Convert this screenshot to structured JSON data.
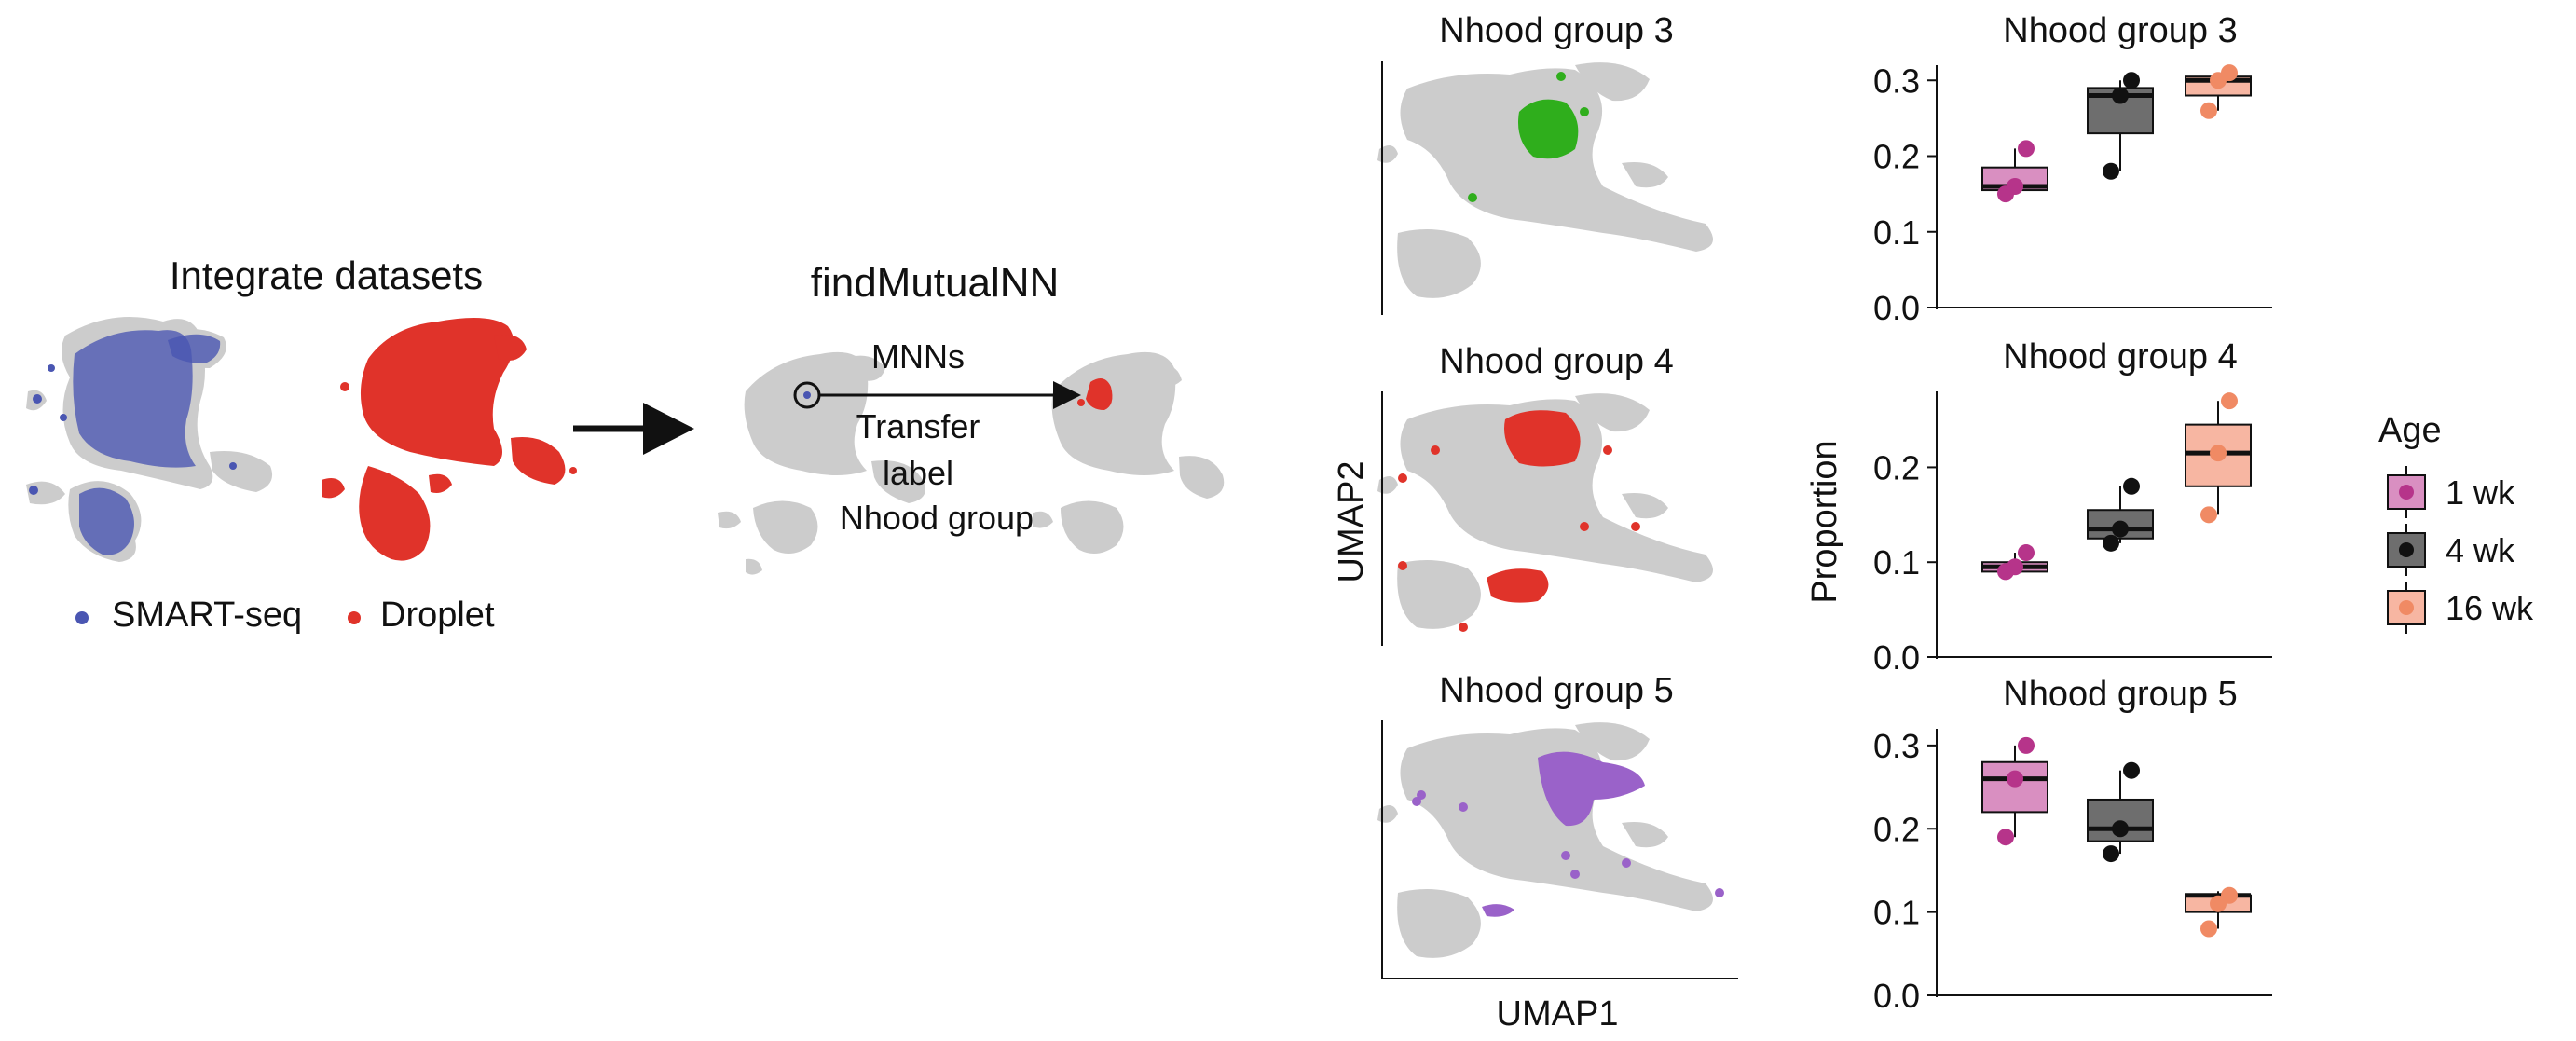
{
  "left_panel": {
    "title": "Integrate datasets",
    "legend": [
      {
        "label": "SMART-seq",
        "color": "#4a56b2"
      },
      {
        "label": "Droplet",
        "color": "#e0332a"
      }
    ]
  },
  "middle_panel": {
    "title": "findMutualNN",
    "mnn_label": "MNNs",
    "transfer_label_1": "Transfer",
    "transfer_label_2": "label",
    "transfer_label_3": "Nhood group"
  },
  "umap_panels": {
    "xlabel": "UMAP1",
    "ylabel": "UMAP2",
    "groups": [
      {
        "title": "Nhood group 3",
        "color": "#2fae1c"
      },
      {
        "title": "Nhood group 4",
        "color": "#e0332a"
      },
      {
        "title": "Nhood group 5",
        "color": "#9a62c9"
      }
    ]
  },
  "colors": {
    "umap_gray": "#cccccc",
    "age_1wk": "#d98fc1",
    "age_4wk": "#6e6e6e",
    "age_16wk": "#f7b6a2",
    "pt_1wk": "#b6348a",
    "pt_4wk": "#111111",
    "pt_16wk": "#f08a64"
  },
  "legend": {
    "title": "Age",
    "items": [
      {
        "label": "1 wk",
        "fill": "#d98fc1",
        "point": "#b6348a"
      },
      {
        "label": "4 wk",
        "fill": "#6e6e6e",
        "point": "#111111"
      },
      {
        "label": "16 wk",
        "fill": "#f7b6a2",
        "point": "#f08a64"
      }
    ]
  },
  "chart_data": [
    {
      "type": "box",
      "title": "Nhood group 3",
      "ylabel": "",
      "categories": [
        "1 wk",
        "4 wk",
        "16 wk"
      ],
      "yticks": [
        "0.0",
        "0.1",
        "0.2",
        "0.3"
      ],
      "ylim": [
        0,
        0.3
      ],
      "boxes": [
        {
          "q1": 0.155,
          "median": 0.16,
          "q3": 0.185,
          "whisker_low": 0.15,
          "whisker_high": 0.21,
          "points": [
            0.15,
            0.16,
            0.21
          ]
        },
        {
          "q1": 0.23,
          "median": 0.28,
          "q3": 0.29,
          "whisker_low": 0.18,
          "whisker_high": 0.3,
          "points": [
            0.18,
            0.28,
            0.3
          ]
        },
        {
          "q1": 0.28,
          "median": 0.3,
          "q3": 0.305,
          "whisker_low": 0.26,
          "whisker_high": 0.31,
          "points": [
            0.26,
            0.3,
            0.31
          ]
        }
      ]
    },
    {
      "type": "box",
      "title": "Nhood group 4",
      "ylabel": "Proportion",
      "categories": [
        "1 wk",
        "4 wk",
        "16 wk"
      ],
      "yticks": [
        "0.0",
        "0.1",
        "0.2"
      ],
      "ylim": [
        0,
        0.28
      ],
      "boxes": [
        {
          "q1": 0.09,
          "median": 0.095,
          "q3": 0.1,
          "whisker_low": 0.09,
          "whisker_high": 0.11,
          "points": [
            0.09,
            0.095,
            0.11
          ]
        },
        {
          "q1": 0.125,
          "median": 0.135,
          "q3": 0.155,
          "whisker_low": 0.12,
          "whisker_high": 0.18,
          "points": [
            0.12,
            0.135,
            0.18
          ]
        },
        {
          "q1": 0.18,
          "median": 0.215,
          "q3": 0.245,
          "whisker_low": 0.15,
          "whisker_high": 0.27,
          "points": [
            0.15,
            0.215,
            0.27
          ]
        }
      ]
    },
    {
      "type": "box",
      "title": "Nhood group 5",
      "ylabel": "",
      "categories": [
        "1 wk",
        "4 wk",
        "16 wk"
      ],
      "yticks": [
        "0.0",
        "0.1",
        "0.2",
        "0.3"
      ],
      "ylim": [
        0,
        0.3
      ],
      "boxes": [
        {
          "q1": 0.22,
          "median": 0.26,
          "q3": 0.28,
          "whisker_low": 0.19,
          "whisker_high": 0.3,
          "points": [
            0.19,
            0.26,
            0.3
          ]
        },
        {
          "q1": 0.185,
          "median": 0.2,
          "q3": 0.235,
          "whisker_low": 0.17,
          "whisker_high": 0.27,
          "points": [
            0.17,
            0.2,
            0.27
          ]
        },
        {
          "q1": 0.1,
          "median": 0.12,
          "q3": 0.12,
          "whisker_low": 0.08,
          "whisker_high": 0.125,
          "points": [
            0.08,
            0.11,
            0.12
          ]
        }
      ]
    }
  ]
}
